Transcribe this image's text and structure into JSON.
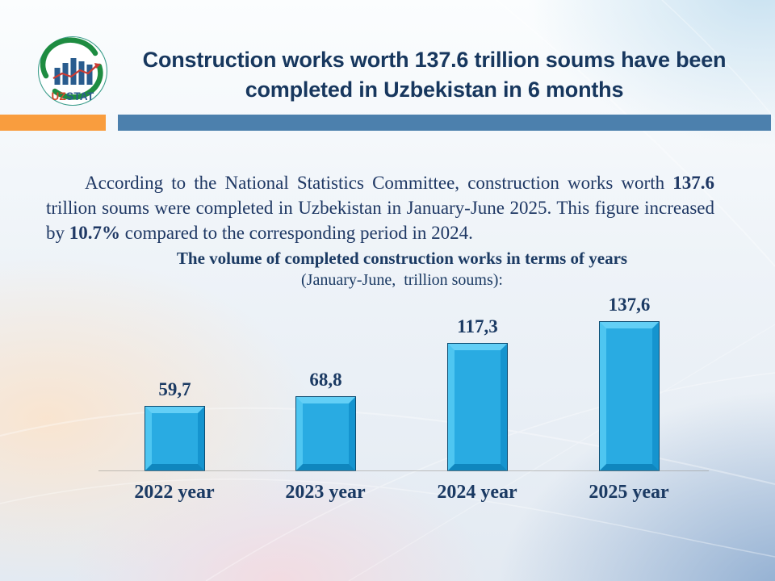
{
  "slide": {
    "title": "Construction works worth 137.6 trillion soums have been completed in Uzbekistan in 6 months"
  },
  "logo": {
    "uz": "UZ",
    "stat": "STAT"
  },
  "accents": {
    "orange": "#F99D3E",
    "blue": "#4C80AD"
  },
  "intro": {
    "segments": [
      {
        "text": "According to the National Statistics Committee, construction works worth ",
        "bold": false
      },
      {
        "text": "137.6",
        "bold": true
      },
      {
        "text": " trillion soums were completed in Uzbekistan in January-June 2025. This figure increased by ",
        "bold": false
      },
      {
        "text": "10.7%",
        "bold": true
      },
      {
        "text": " compared to the corresponding period in 2024.",
        "bold": false
      }
    ]
  },
  "chart_data": {
    "type": "bar",
    "title": "The volume of completed construction works in terms of years",
    "subtitle": "(January-June,  trillion soums):",
    "categories": [
      "2022 year",
      "2023 year",
      "2024 year",
      "2025 year"
    ],
    "values": [
      59.7,
      68.8,
      117.3,
      137.6
    ],
    "value_labels": [
      "59,7",
      "68,8",
      "117,3",
      "137,6"
    ],
    "bar_color": "#29ABE2",
    "ylim": [
      0,
      150
    ],
    "grid": false,
    "legend": false,
    "baseline_axis": true
  }
}
